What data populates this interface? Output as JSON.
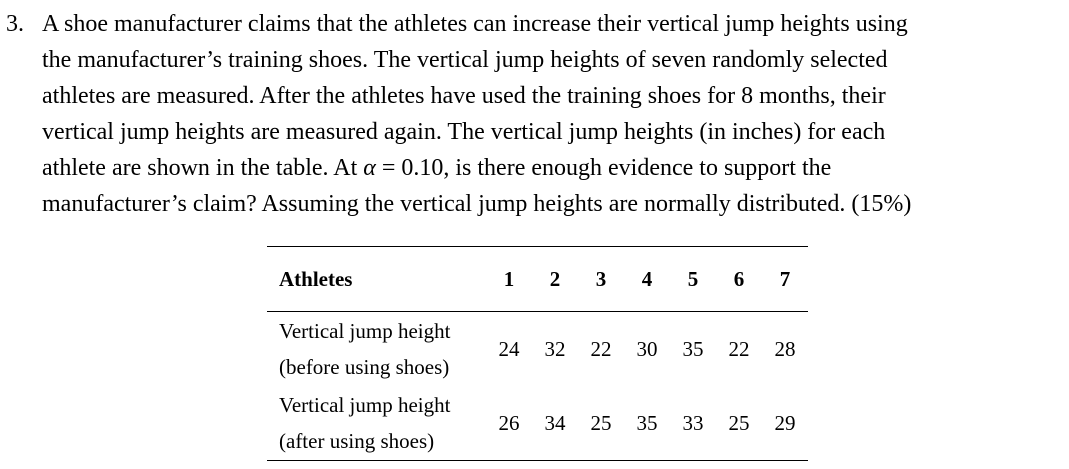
{
  "problem": {
    "number": "3.",
    "lines": [
      "A shoe manufacturer claims that the athletes can increase their vertical jump heights using",
      "the manufacturer’s training shoes. The vertical jump heights of seven randomly selected",
      "athletes are measured. After the athletes have used the training shoes for 8 months, their",
      "vertical jump heights are measured again. The vertical jump heights (in inches) for each",
      "athlete are shown in the table. At",
      "manufacturer’s claim? Assuming the vertical jump heights are normally distributed. (15%)"
    ],
    "alpha_symbol": "α",
    "alpha_rest": " = 0.10, is there enough evidence to support the"
  },
  "table": {
    "header_label": "Athletes",
    "athletes": [
      "1",
      "2",
      "3",
      "4",
      "5",
      "6",
      "7"
    ],
    "rows": [
      {
        "label_line1": "Vertical jump height",
        "label_line2": "(before using shoes)",
        "values": [
          "24",
          "32",
          "22",
          "30",
          "35",
          "22",
          "28"
        ]
      },
      {
        "label_line1": "Vertical jump height",
        "label_line2": "(after using shoes)",
        "values": [
          "26",
          "34",
          "25",
          "35",
          "33",
          "25",
          "29"
        ]
      }
    ]
  }
}
